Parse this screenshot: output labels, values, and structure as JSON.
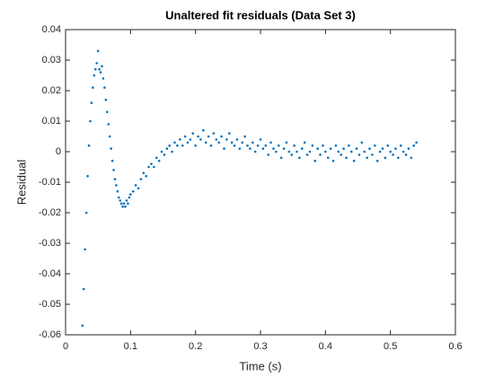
{
  "chart_data": {
    "type": "scatter",
    "title": "Unaltered fit residuals (Data Set 3)",
    "x_label": "Time (s)",
    "y_label": "Residual",
    "xlim": [
      0,
      0.6
    ],
    "xticks": [
      0,
      0.1,
      0.2,
      0.3,
      0.4,
      0.5,
      0.6
    ],
    "ylim": [
      -0.06,
      0.04
    ],
    "yticks": [
      -0.06,
      -0.05,
      -0.04,
      -0.03,
      -0.02,
      -0.01,
      0,
      0.01,
      0.02,
      0.03,
      0.04
    ],
    "grid": false,
    "box": true,
    "series": [
      {
        "color": "#0072bd",
        "x": [
          0.026,
          0.028,
          0.03,
          0.032,
          0.034,
          0.036,
          0.038,
          0.04,
          0.042,
          0.044,
          0.046,
          0.048,
          0.05,
          0.052,
          0.054,
          0.056,
          0.058,
          0.06,
          0.062,
          0.064,
          0.066,
          0.068,
          0.07,
          0.072,
          0.074,
          0.076,
          0.078,
          0.08,
          0.082,
          0.084,
          0.086,
          0.088,
          0.09,
          0.092,
          0.094,
          0.096,
          0.098,
          0.1,
          0.104,
          0.108,
          0.112,
          0.116,
          0.12,
          0.124,
          0.128,
          0.132,
          0.136,
          0.14,
          0.144,
          0.148,
          0.152,
          0.156,
          0.16,
          0.164,
          0.168,
          0.172,
          0.176,
          0.18,
          0.184,
          0.188,
          0.192,
          0.196,
          0.2,
          0.204,
          0.208,
          0.212,
          0.216,
          0.22,
          0.224,
          0.228,
          0.232,
          0.236,
          0.24,
          0.244,
          0.248,
          0.252,
          0.256,
          0.26,
          0.264,
          0.268,
          0.272,
          0.276,
          0.28,
          0.284,
          0.288,
          0.292,
          0.296,
          0.3,
          0.304,
          0.308,
          0.312,
          0.316,
          0.32,
          0.324,
          0.328,
          0.332,
          0.336,
          0.34,
          0.344,
          0.348,
          0.352,
          0.356,
          0.36,
          0.364,
          0.368,
          0.372,
          0.376,
          0.38,
          0.384,
          0.388,
          0.392,
          0.396,
          0.4,
          0.404,
          0.408,
          0.412,
          0.416,
          0.42,
          0.424,
          0.428,
          0.432,
          0.436,
          0.44,
          0.444,
          0.448,
          0.452,
          0.456,
          0.46,
          0.464,
          0.468,
          0.472,
          0.476,
          0.48,
          0.484,
          0.488,
          0.492,
          0.496,
          0.5,
          0.504,
          0.508,
          0.512,
          0.516,
          0.52,
          0.524,
          0.528,
          0.532,
          0.536,
          0.54
        ],
        "values": [
          -0.057,
          -0.045,
          -0.032,
          -0.02,
          -0.008,
          0.002,
          0.01,
          0.016,
          0.021,
          0.025,
          0.027,
          0.029,
          0.033,
          0.027,
          0.026,
          0.028,
          0.024,
          0.021,
          0.017,
          0.013,
          0.009,
          0.005,
          0.001,
          -0.003,
          -0.006,
          -0.009,
          -0.011,
          -0.013,
          -0.015,
          -0.016,
          -0.017,
          -0.018,
          -0.017,
          -0.018,
          -0.016,
          -0.017,
          -0.015,
          -0.014,
          -0.013,
          -0.011,
          -0.012,
          -0.009,
          -0.007,
          -0.008,
          -0.005,
          -0.004,
          -0.005,
          -0.002,
          -0.003,
          0.0,
          -0.001,
          0.001,
          0.002,
          0.0,
          0.003,
          0.002,
          0.004,
          0.002,
          0.005,
          0.003,
          0.004,
          0.006,
          0.002,
          0.005,
          0.004,
          0.007,
          0.003,
          0.005,
          0.002,
          0.006,
          0.004,
          0.003,
          0.005,
          0.001,
          0.004,
          0.006,
          0.003,
          0.002,
          0.004,
          0.001,
          0.003,
          0.005,
          0.002,
          0.001,
          0.003,
          0.0,
          0.002,
          0.004,
          0.001,
          0.002,
          -0.001,
          0.003,
          0.001,
          0.0,
          0.002,
          -0.002,
          0.001,
          0.003,
          0.0,
          -0.001,
          0.002,
          0.0,
          -0.002,
          0.001,
          0.003,
          -0.001,
          0.0,
          0.002,
          -0.003,
          0.001,
          -0.001,
          0.002,
          0.0,
          -0.002,
          0.001,
          -0.003,
          0.002,
          0.0,
          -0.001,
          0.001,
          -0.002,
          0.002,
          0.0,
          -0.003,
          0.001,
          -0.001,
          0.003,
          0.0,
          -0.002,
          0.001,
          -0.001,
          0.002,
          -0.003,
          0.0,
          0.001,
          -0.002,
          0.002,
          0.0,
          -0.001,
          0.001,
          -0.002,
          0.002,
          0.0,
          -0.001,
          0.001,
          -0.002,
          0.002,
          0.003
        ]
      }
    ]
  }
}
